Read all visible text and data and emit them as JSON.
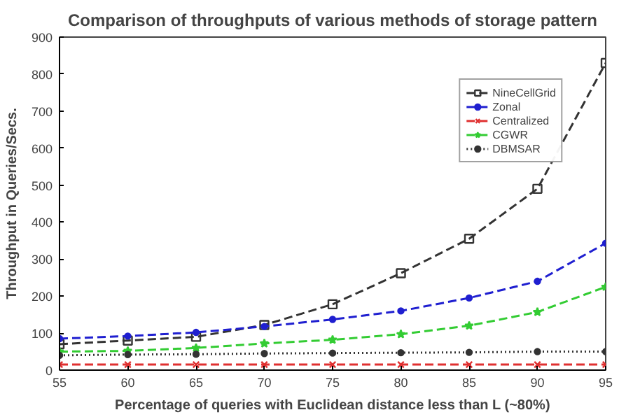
{
  "chart_data": {
    "type": "line",
    "title": "Comparison of throughputs of various methods of storage pattern",
    "xlabel": "Percentage of queries with Euclidean distance less than L (~80%)",
    "ylabel": "Throughput in Queries/Secs.",
    "x": [
      55,
      60,
      65,
      70,
      75,
      80,
      85,
      90,
      95
    ],
    "series": [
      {
        "name": "NineCellGrid",
        "color": "#333333",
        "marker": "square",
        "line_style": "dashed",
        "values": [
          70,
          80,
          90,
          122,
          178,
          262,
          355,
          490,
          830
        ]
      },
      {
        "name": "Zonal",
        "color": "#1f1fd0",
        "marker": "circle",
        "line_style": "dashed",
        "values": [
          85,
          92,
          102,
          118,
          137,
          160,
          195,
          240,
          343
        ]
      },
      {
        "name": "Centralized",
        "color": "#e03030",
        "marker": "cross",
        "line_style": "dashed",
        "values": [
          15,
          15,
          15,
          15,
          15,
          15,
          15,
          15,
          15
        ]
      },
      {
        "name": "CGWR",
        "color": "#33cc33",
        "marker": "star",
        "line_style": "dashed",
        "values": [
          50,
          52,
          60,
          72,
          82,
          97,
          120,
          157,
          225
        ]
      },
      {
        "name": "DBMSAR",
        "color": "#333333",
        "marker": "circle",
        "line_style": "dotted",
        "values": [
          40,
          42,
          43,
          45,
          46,
          47,
          48,
          50,
          50
        ]
      }
    ],
    "xlim": [
      55,
      95
    ],
    "ylim": [
      0,
      900
    ],
    "xticks": [
      55,
      60,
      65,
      70,
      75,
      80,
      85,
      90,
      95
    ],
    "yticks": [
      0,
      100,
      200,
      300,
      400,
      500,
      600,
      700,
      800,
      900
    ],
    "grid": false,
    "legend": "top right"
  }
}
